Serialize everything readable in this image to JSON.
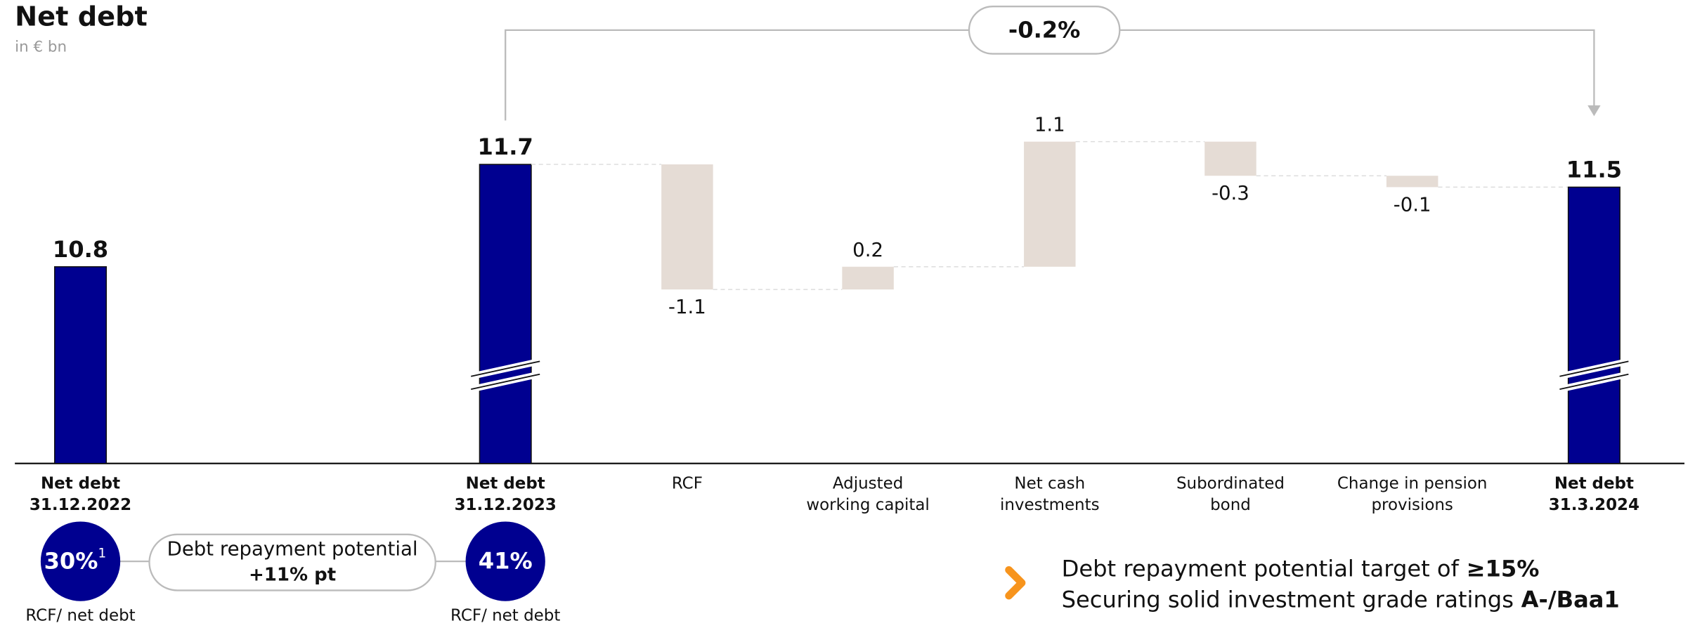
{
  "title": "Net debt",
  "subtitle": "in € bn",
  "chart_data": {
    "type": "waterfall",
    "categories": [
      [
        "Net debt",
        "31.12.2022"
      ],
      [
        "Net debt",
        "31.12.2023"
      ],
      [
        "RCF"
      ],
      [
        "Adjusted",
        "working capital"
      ],
      [
        "Net cash",
        "investments"
      ],
      [
        "Subordinated",
        "bond"
      ],
      [
        "Change in pension",
        "provisions"
      ],
      [
        "Net debt",
        "31.3.2024"
      ]
    ],
    "values": [
      10.8,
      11.7,
      -1.1,
      0.2,
      1.1,
      -0.3,
      -0.1,
      11.5
    ],
    "measures": [
      "total",
      "total",
      "relative",
      "relative",
      "relative",
      "relative",
      "relative",
      "total"
    ],
    "colors": {
      "total": "#000090",
      "relative": "#e5dcd5"
    },
    "ylim": [
      9.07,
      12.2
    ],
    "change_annotation": "-0.2%"
  },
  "ratios": [
    {
      "value": "30%",
      "footnote": "1",
      "label": "RCF/ net debt"
    },
    {
      "value": "41%",
      "label": "RCF/ net debt"
    }
  ],
  "ratio_change": {
    "title": "Debt repayment potential",
    "value": "+11% pt"
  },
  "bullets": [
    {
      "text": "Debt repayment potential target of",
      "emphasis": "≥15%"
    },
    {
      "text": "Securing solid investment grade ratings",
      "emphasis": "A-/Baa1"
    }
  ]
}
